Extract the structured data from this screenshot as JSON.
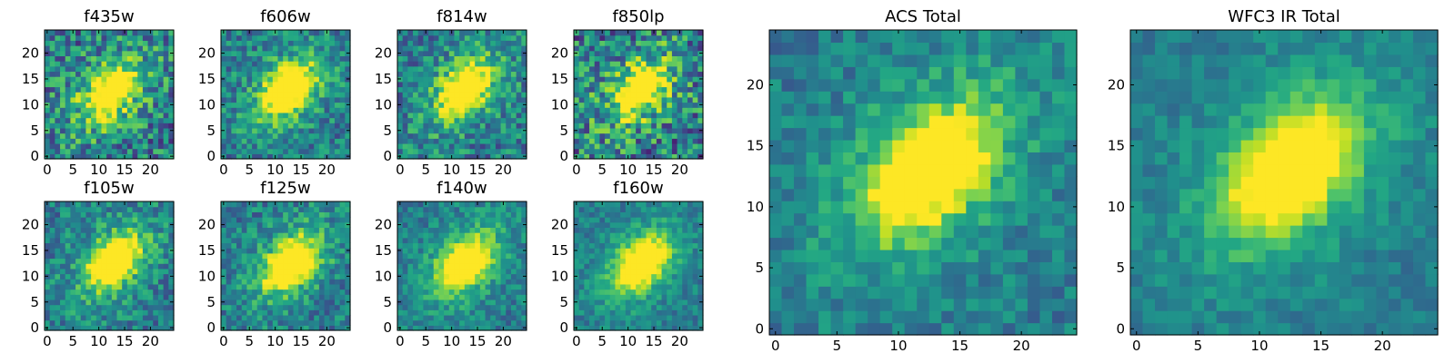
{
  "chart_data": [
    {
      "type": "heatmap",
      "title": "f435w",
      "xlim": [
        0,
        24
      ],
      "ylim": [
        0,
        24
      ],
      "xticks": [
        0,
        5,
        10,
        15,
        20
      ],
      "yticks": [
        0,
        5,
        10,
        15,
        20
      ],
      "xtick_labels": [
        "0",
        "5",
        "10",
        "15",
        "20"
      ],
      "ytick_labels": [
        "0",
        "5",
        "10",
        "15",
        "20"
      ],
      "grid": false,
      "colormap": "viridis",
      "peak": {
        "x": 12.5,
        "y": 12.5
      },
      "noise": 0.3
    },
    {
      "type": "heatmap",
      "title": "f606w",
      "xlim": [
        0,
        24
      ],
      "ylim": [
        0,
        24
      ],
      "xticks": [
        0,
        5,
        10,
        15,
        20
      ],
      "yticks": [
        0,
        5,
        10,
        15,
        20
      ],
      "xtick_labels": [
        "0",
        "5",
        "10",
        "15",
        "20"
      ],
      "ytick_labels": [
        "0",
        "5",
        "10",
        "15",
        "20"
      ],
      "grid": false,
      "colormap": "viridis",
      "peak": {
        "x": 12.5,
        "y": 13
      },
      "noise": 0.22
    },
    {
      "type": "heatmap",
      "title": "f814w",
      "xlim": [
        0,
        24
      ],
      "ylim": [
        0,
        24
      ],
      "xticks": [
        0,
        5,
        10,
        15,
        20
      ],
      "yticks": [
        0,
        5,
        10,
        15,
        20
      ],
      "xtick_labels": [
        "0",
        "5",
        "10",
        "15",
        "20"
      ],
      "ytick_labels": [
        "0",
        "5",
        "10",
        "15",
        "20"
      ],
      "grid": false,
      "colormap": "viridis",
      "peak": {
        "x": 12.5,
        "y": 13
      },
      "noise": 0.24
    },
    {
      "type": "heatmap",
      "title": "f850lp",
      "xlim": [
        0,
        24
      ],
      "ylim": [
        0,
        24
      ],
      "xticks": [
        0,
        5,
        10,
        15,
        20
      ],
      "yticks": [
        0,
        5,
        10,
        15,
        20
      ],
      "xtick_labels": [
        "0",
        "5",
        "10",
        "15",
        "20"
      ],
      "ytick_labels": [
        "0",
        "5",
        "10",
        "15",
        "20"
      ],
      "grid": false,
      "colormap": "viridis",
      "peak": {
        "x": 12.5,
        "y": 13
      },
      "noise": 0.34
    },
    {
      "type": "heatmap",
      "title": "f105w",
      "xlim": [
        0,
        24
      ],
      "ylim": [
        0,
        24
      ],
      "xticks": [
        0,
        5,
        10,
        15,
        20
      ],
      "yticks": [
        0,
        5,
        10,
        15,
        20
      ],
      "xtick_labels": [
        "0",
        "5",
        "10",
        "15",
        "20"
      ],
      "ytick_labels": [
        "0",
        "5",
        "10",
        "15",
        "20"
      ],
      "grid": false,
      "colormap": "viridis",
      "peak": {
        "x": 13,
        "y": 13
      },
      "noise": 0.2
    },
    {
      "type": "heatmap",
      "title": "f125w",
      "xlim": [
        0,
        24
      ],
      "ylim": [
        0,
        24
      ],
      "xticks": [
        0,
        5,
        10,
        15,
        20
      ],
      "yticks": [
        0,
        5,
        10,
        15,
        20
      ],
      "xtick_labels": [
        "0",
        "5",
        "10",
        "15",
        "20"
      ],
      "ytick_labels": [
        "0",
        "5",
        "10",
        "15",
        "20"
      ],
      "grid": false,
      "colormap": "viridis",
      "peak": {
        "x": 13,
        "y": 12.5
      },
      "noise": 0.2
    },
    {
      "type": "heatmap",
      "title": "f140w",
      "xlim": [
        0,
        24
      ],
      "ylim": [
        0,
        24
      ],
      "xticks": [
        0,
        5,
        10,
        15,
        20
      ],
      "yticks": [
        0,
        5,
        10,
        15,
        20
      ],
      "xtick_labels": [
        "0",
        "5",
        "10",
        "15",
        "20"
      ],
      "ytick_labels": [
        "0",
        "5",
        "10",
        "15",
        "20"
      ],
      "grid": false,
      "colormap": "viridis",
      "peak": {
        "x": 12.5,
        "y": 12.5
      },
      "noise": 0.16
    },
    {
      "type": "heatmap",
      "title": "f160w",
      "xlim": [
        0,
        24
      ],
      "ylim": [
        0,
        24
      ],
      "xticks": [
        0,
        5,
        10,
        15,
        20
      ],
      "yticks": [
        0,
        5,
        10,
        15,
        20
      ],
      "xtick_labels": [
        "0",
        "5",
        "10",
        "15",
        "20"
      ],
      "ytick_labels": [
        "0",
        "5",
        "10",
        "15",
        "20"
      ],
      "grid": false,
      "colormap": "viridis",
      "peak": {
        "x": 12.5,
        "y": 12.5
      },
      "noise": 0.14
    },
    {
      "type": "heatmap",
      "title": "ACS Total",
      "xlim": [
        0,
        24
      ],
      "ylim": [
        0,
        24
      ],
      "xticks": [
        0,
        5,
        10,
        15,
        20
      ],
      "yticks": [
        0,
        5,
        10,
        15,
        20
      ],
      "xtick_labels": [
        "0",
        "5",
        "10",
        "15",
        "20"
      ],
      "ytick_labels": [
        "0",
        "5",
        "10",
        "15",
        "20"
      ],
      "grid": false,
      "colormap": "viridis",
      "peak": {
        "x": 12.5,
        "y": 13
      },
      "noise": 0.14
    },
    {
      "type": "heatmap",
      "title": "WFC3 IR Total",
      "xlim": [
        0,
        24
      ],
      "ylim": [
        0,
        24
      ],
      "xticks": [
        0,
        5,
        10,
        15,
        20
      ],
      "yticks": [
        0,
        5,
        10,
        15,
        20
      ],
      "xtick_labels": [
        "0",
        "5",
        "10",
        "15",
        "20"
      ],
      "ytick_labels": [
        "0",
        "5",
        "10",
        "15",
        "20"
      ],
      "grid": false,
      "colormap": "viridis",
      "peak": {
        "x": 12.5,
        "y": 13
      },
      "noise": 0.1
    }
  ]
}
